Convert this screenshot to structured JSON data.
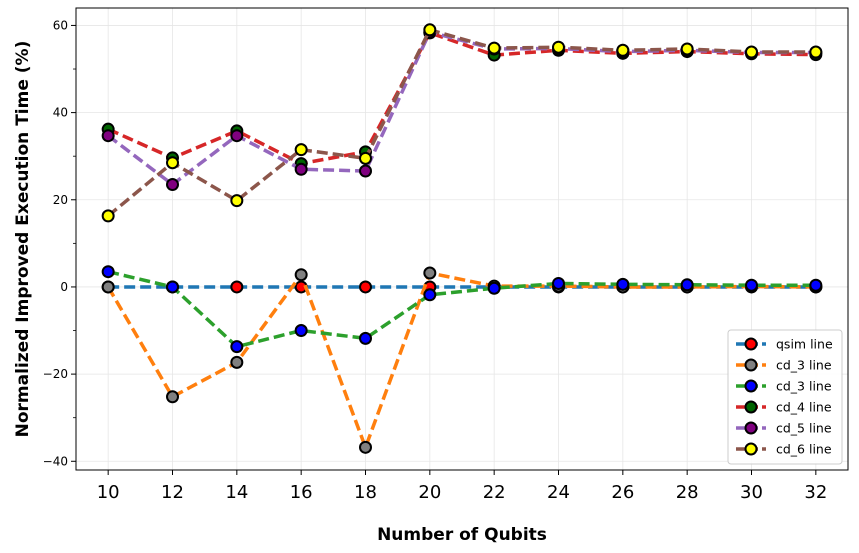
{
  "chart_data": {
    "type": "line",
    "xlabel": "Number of Qubits",
    "ylabel": "Normalized Improved Execution Time (%)",
    "x": [
      10,
      12,
      14,
      16,
      18,
      20,
      22,
      24,
      26,
      28,
      30,
      32
    ],
    "xlim": [
      9,
      33
    ],
    "ylim": [
      -42,
      64
    ],
    "y_ticks": [
      -40,
      -20,
      0,
      20,
      40,
      60
    ],
    "grid": true,
    "legend_position": "lower-right",
    "series": [
      {
        "name": "qsim line",
        "line_color": "#1f77b4",
        "marker_color": "#ff0000",
        "values": [
          0,
          0,
          0,
          0,
          0,
          0,
          0,
          0,
          0,
          0,
          0,
          0
        ]
      },
      {
        "name": "cd_3 line",
        "line_color": "#ff7f0e",
        "marker_color": "#808080",
        "values": [
          0,
          -25.2,
          -17.3,
          2.8,
          -36.8,
          3.2,
          0.2,
          0.2,
          0.0,
          0.0,
          0.1,
          0.0
        ]
      },
      {
        "name": "cd_3 line",
        "line_color": "#2ca02c",
        "marker_color": "#0000ff",
        "values": [
          3.5,
          0,
          -13.7,
          -10,
          -11.8,
          -1.8,
          -0.3,
          0.8,
          0.6,
          0.5,
          0.4,
          0.4
        ]
      },
      {
        "name": "cd_4 line",
        "line_color": "#d62728",
        "marker_color": "#006400",
        "values": [
          36.2,
          29.6,
          35.8,
          28.3,
          31.0,
          58.3,
          53.2,
          54.3,
          53.6,
          54.0,
          53.5,
          53.3
        ]
      },
      {
        "name": "cd_5 line",
        "line_color": "#9467bd",
        "marker_color": "#800080",
        "values": [
          34.7,
          23.5,
          34.7,
          27.0,
          26.6,
          58.5,
          54.6,
          54.7,
          54.0,
          54.3,
          53.8,
          53.8
        ]
      },
      {
        "name": "cd_6 line",
        "line_color": "#8c564b",
        "marker_color": "#ffff00",
        "values": [
          16.3,
          28.5,
          19.8,
          31.5,
          29.5,
          59.0,
          54.8,
          55.0,
          54.3,
          54.6,
          53.9,
          53.9
        ]
      }
    ]
  }
}
